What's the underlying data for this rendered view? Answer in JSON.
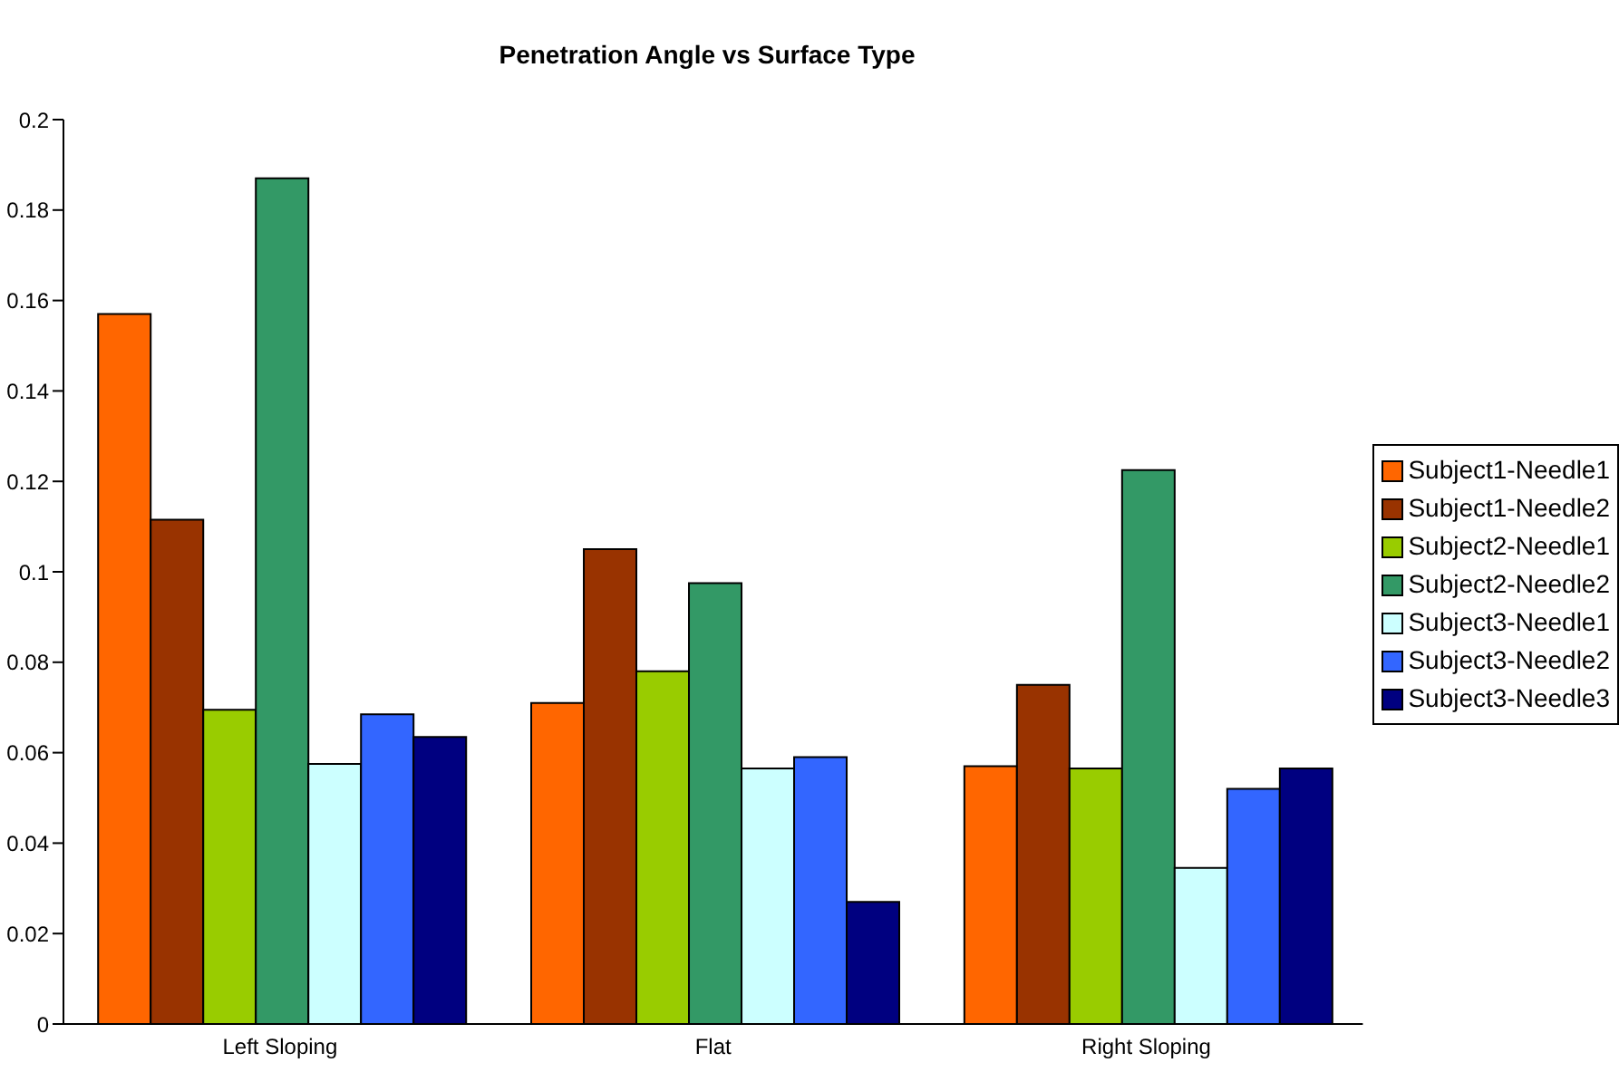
{
  "chart_data": {
    "type": "bar",
    "title": "Penetration Angle vs Surface Type",
    "categories": [
      "Left Sloping",
      "Flat",
      "Right Sloping"
    ],
    "series": [
      {
        "name": "Subject1-Needle1",
        "color": "#ff6600",
        "values": [
          0.157,
          0.071,
          0.057
        ]
      },
      {
        "name": "Subject1-Needle2",
        "color": "#993300",
        "values": [
          0.1115,
          0.105,
          0.075
        ]
      },
      {
        "name": "Subject2-Needle1",
        "color": "#99cc00",
        "values": [
          0.0695,
          0.078,
          0.0565
        ]
      },
      {
        "name": "Subject2-Needle2",
        "color": "#339966",
        "values": [
          0.187,
          0.0975,
          0.1225
        ]
      },
      {
        "name": "Subject3-Needle1",
        "color": "#ccffff",
        "values": [
          0.0575,
          0.0565,
          0.0345
        ]
      },
      {
        "name": "Subject3-Needle2",
        "color": "#3366ff",
        "values": [
          0.0685,
          0.059,
          0.052
        ]
      },
      {
        "name": "Subject3-Needle3",
        "color": "#000080",
        "values": [
          0.0635,
          0.027,
          0.0565
        ]
      }
    ],
    "ylim": [
      0,
      0.2
    ],
    "yticks": [
      0,
      0.02,
      0.04,
      0.06,
      0.08,
      0.1,
      0.12,
      0.14,
      0.16,
      0.18,
      0.2
    ],
    "grid": false,
    "legend": "right"
  }
}
